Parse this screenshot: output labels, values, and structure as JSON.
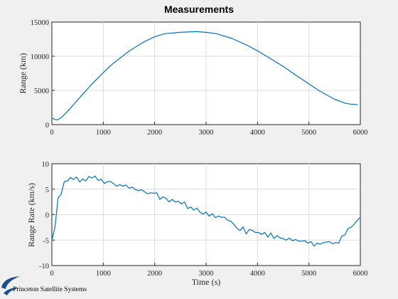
{
  "figure": {
    "title": "Measurements",
    "logo_text": "Princeton Satellite Systems",
    "logo_color": "#1a4f8f"
  },
  "chart_data": [
    {
      "type": "line",
      "title": "Measurements",
      "xlabel": "",
      "ylabel": "Range (km)",
      "xlim": [
        0,
        6000
      ],
      "ylim": [
        0,
        15000
      ],
      "xticks": [
        0,
        1000,
        2000,
        3000,
        4000,
        5000,
        6000
      ],
      "yticks": [
        0,
        5000,
        10000,
        15000
      ],
      "grid": true,
      "color": "#0072bd",
      "series": [
        {
          "x": [
            0,
            50,
            100,
            150,
            200,
            300,
            400,
            500,
            600,
            800,
            1000,
            1200,
            1500,
            1800,
            2000,
            2200,
            2500,
            2800,
            3000,
            3200,
            3500,
            3800,
            4000,
            4200,
            4500,
            4800,
            5000,
            5200,
            5500,
            5700,
            5800,
            5900,
            5950
          ],
          "values": [
            1000,
            750,
            700,
            850,
            1150,
            1900,
            2750,
            3600,
            4450,
            6100,
            7600,
            9000,
            10750,
            12150,
            12850,
            13300,
            13500,
            13600,
            13500,
            13300,
            12600,
            11600,
            10800,
            9900,
            8500,
            6950,
            5950,
            4950,
            3700,
            3150,
            3000,
            2950,
            2900
          ]
        }
      ]
    },
    {
      "type": "line",
      "title": "",
      "xlabel": "Time (s)",
      "ylabel": "Range Rate (km/s)",
      "xlim": [
        0,
        6000
      ],
      "ylim": [
        -10,
        10
      ],
      "xticks": [
        0,
        1000,
        2000,
        3000,
        4000,
        5000,
        6000
      ],
      "yticks": [
        -10,
        -5,
        0,
        5,
        10
      ],
      "grid": true,
      "color": "#0072bd",
      "series": [
        {
          "x": [
            0,
            60,
            120,
            180,
            240,
            300,
            360,
            420,
            480,
            540,
            600,
            660,
            720,
            780,
            840,
            900,
            960,
            1020,
            1080,
            1140,
            1200,
            1260,
            1320,
            1380,
            1440,
            1500,
            1560,
            1620,
            1680,
            1740,
            1800,
            1860,
            1920,
            1980,
            2040,
            2100,
            2160,
            2220,
            2280,
            2340,
            2400,
            2460,
            2520,
            2580,
            2640,
            2700,
            2760,
            2820,
            2880,
            2940,
            3000,
            3060,
            3120,
            3180,
            3240,
            3300,
            3360,
            3420,
            3480,
            3540,
            3600,
            3660,
            3720,
            3780,
            3840,
            3900,
            3960,
            4020,
            4080,
            4140,
            4200,
            4260,
            4320,
            4380,
            4440,
            4500,
            4560,
            4620,
            4680,
            4740,
            4800,
            4860,
            4920,
            4980,
            5040,
            5100,
            5160,
            5220,
            5280,
            5340,
            5400,
            5460,
            5520,
            5580,
            5640,
            5700,
            5760,
            5820,
            5880,
            5940,
            5990
          ],
          "values": [
            -5.0,
            -2.5,
            3.3,
            4.0,
            6.5,
            6.6,
            7.3,
            6.9,
            7.4,
            6.4,
            7.0,
            6.6,
            7.5,
            7.2,
            7.6,
            6.7,
            7.0,
            6.1,
            6.5,
            6.5,
            6.1,
            5.6,
            5.9,
            5.6,
            5.8,
            5.2,
            5.4,
            5.0,
            4.7,
            4.9,
            4.5,
            4.1,
            4.3,
            4.2,
            4.3,
            3.0,
            3.5,
            3.2,
            2.5,
            3.0,
            2.5,
            2.6,
            2.1,
            2.5,
            1.2,
            1.5,
            0.9,
            1.3,
            0.5,
            0.1,
            0.5,
            -0.3,
            0.2,
            -0.6,
            -0.3,
            -0.5,
            -0.5,
            -1.1,
            -1.3,
            -1.9,
            -2.7,
            -3.1,
            -2.4,
            -3.8,
            -2.9,
            -3.1,
            -3.5,
            -3.5,
            -3.9,
            -3.5,
            -4.4,
            -3.6,
            -4.7,
            -4.1,
            -4.6,
            -4.7,
            -5.0,
            -4.6,
            -5.1,
            -4.9,
            -5.2,
            -5.2,
            -5.1,
            -5.6,
            -5.3,
            -6.2,
            -5.6,
            -5.8,
            -5.5,
            -5.4,
            -5.3,
            -5.7,
            -5.5,
            -5.6,
            -4.2,
            -4.0,
            -2.7,
            -2.5,
            -1.9,
            -1.1,
            -0.6
          ]
        }
      ]
    }
  ]
}
